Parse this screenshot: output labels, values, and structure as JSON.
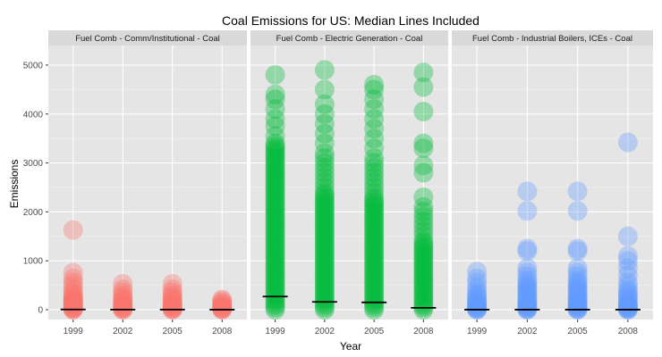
{
  "chart_data": {
    "type": "scatter",
    "title": "Coal Emissions for US: Median Lines Included",
    "xlabel": "Year",
    "ylabel": "Emissions",
    "x_categories": [
      "1999",
      "2002",
      "2005",
      "2008"
    ],
    "ylim": [
      -200,
      5400
    ],
    "y_ticks": [
      0,
      1000,
      2000,
      3000,
      4000,
      5000
    ],
    "grid": true,
    "legend": "none",
    "panels": [
      {
        "name": "Fuel Comb - Comm/Institutional - Coal",
        "color": "#F8766D",
        "medians": [
          5,
          3,
          3,
          2
        ],
        "points": {
          "1999": [
            0,
            10,
            20,
            35,
            50,
            70,
            90,
            110,
            130,
            150,
            170,
            190,
            210,
            230,
            250,
            280,
            320,
            360,
            420,
            500,
            560,
            640,
            760,
            1630
          ],
          "2002": [
            0,
            10,
            20,
            40,
            60,
            80,
            100,
            130,
            160,
            190,
            220,
            260,
            300,
            360,
            420,
            530
          ],
          "2005": [
            0,
            10,
            20,
            40,
            60,
            80,
            100,
            130,
            160,
            190,
            220,
            260,
            300,
            360,
            420,
            530
          ],
          "2008": [
            0,
            10,
            20,
            35,
            50,
            70,
            90,
            120,
            150,
            180,
            210
          ]
        }
      },
      {
        "name": "Fuel Comb - Electric Generation - Coal",
        "color": "#00BA38",
        "medians": [
          270,
          160,
          150,
          40
        ],
        "points": {
          "1999": [
            0,
            50,
            100,
            150,
            200,
            250,
            300,
            350,
            400,
            450,
            500,
            550,
            600,
            650,
            700,
            750,
            800,
            850,
            900,
            950,
            1000,
            1050,
            1100,
            1150,
            1200,
            1250,
            1300,
            1350,
            1400,
            1450,
            1500,
            1550,
            1600,
            1650,
            1700,
            1750,
            1800,
            1850,
            1900,
            1950,
            2000,
            2050,
            2100,
            2150,
            2200,
            2250,
            2300,
            2350,
            2400,
            2450,
            2500,
            2550,
            2600,
            2650,
            2700,
            2750,
            2800,
            2850,
            2900,
            2950,
            3000,
            3050,
            3100,
            3150,
            3200,
            3250,
            3300,
            3350,
            3400,
            3550,
            3750,
            3900,
            4100,
            4300,
            4400,
            4800
          ],
          "2002": [
            0,
            50,
            100,
            150,
            200,
            250,
            300,
            350,
            400,
            450,
            500,
            550,
            600,
            650,
            700,
            750,
            800,
            850,
            900,
            950,
            1000,
            1050,
            1100,
            1150,
            1200,
            1250,
            1300,
            1350,
            1400,
            1450,
            1500,
            1550,
            1600,
            1650,
            1700,
            1750,
            1800,
            1850,
            1900,
            1950,
            2000,
            2050,
            2100,
            2150,
            2200,
            2250,
            2300,
            2350,
            2400,
            2500,
            2600,
            2700,
            2800,
            2900,
            3000,
            3100,
            3200,
            3400,
            3600,
            3800,
            4000,
            4200,
            4500,
            4900
          ],
          "2005": [
            0,
            50,
            100,
            150,
            200,
            250,
            300,
            350,
            400,
            450,
            500,
            550,
            600,
            650,
            700,
            750,
            800,
            850,
            900,
            950,
            1000,
            1050,
            1100,
            1150,
            1200,
            1250,
            1300,
            1350,
            1400,
            1450,
            1500,
            1550,
            1600,
            1650,
            1700,
            1750,
            1800,
            1850,
            1900,
            1950,
            2000,
            2050,
            2100,
            2150,
            2200,
            2250,
            2300,
            2400,
            2500,
            2600,
            2700,
            2800,
            2900,
            3000,
            3100,
            3300,
            3500,
            3700,
            3900,
            4100,
            4300,
            4500,
            4600
          ],
          "2008": [
            0,
            50,
            100,
            150,
            200,
            250,
            300,
            350,
            400,
            450,
            500,
            550,
            600,
            650,
            700,
            750,
            800,
            850,
            900,
            950,
            1000,
            1050,
            1100,
            1150,
            1200,
            1250,
            1300,
            1350,
            1400,
            1500,
            1600,
            1700,
            1800,
            1900,
            2000,
            2100,
            2300,
            2800,
            2950,
            3300,
            3400,
            4050,
            4550,
            4850
          ]
        }
      },
      {
        "name": "Fuel Comb - Industrial Boilers, ICEs - Coal",
        "color": "#619CFF",
        "medians": [
          2,
          2,
          2,
          2
        ],
        "points": {
          "1999": [
            0,
            10,
            20,
            35,
            50,
            70,
            90,
            110,
            140,
            170,
            200,
            240,
            280,
            320,
            380,
            450,
            550,
            640,
            780
          ],
          "2002": [
            0,
            10,
            20,
            40,
            60,
            80,
            100,
            130,
            160,
            190,
            220,
            260,
            300,
            340,
            380,
            420,
            460,
            500,
            550,
            600,
            680,
            760,
            850,
            1200,
            1250,
            2020,
            2420
          ],
          "2005": [
            0,
            10,
            20,
            40,
            60,
            80,
            100,
            130,
            160,
            190,
            220,
            260,
            300,
            340,
            380,
            420,
            460,
            500,
            550,
            600,
            680,
            760,
            850,
            1200,
            1250,
            2020,
            2420
          ],
          "2008": [
            0,
            10,
            20,
            35,
            50,
            70,
            90,
            110,
            140,
            180,
            220,
            260,
            300,
            350,
            400,
            480,
            560,
            700,
            850,
            1000,
            1100,
            1500,
            3420
          ]
        }
      }
    ]
  }
}
